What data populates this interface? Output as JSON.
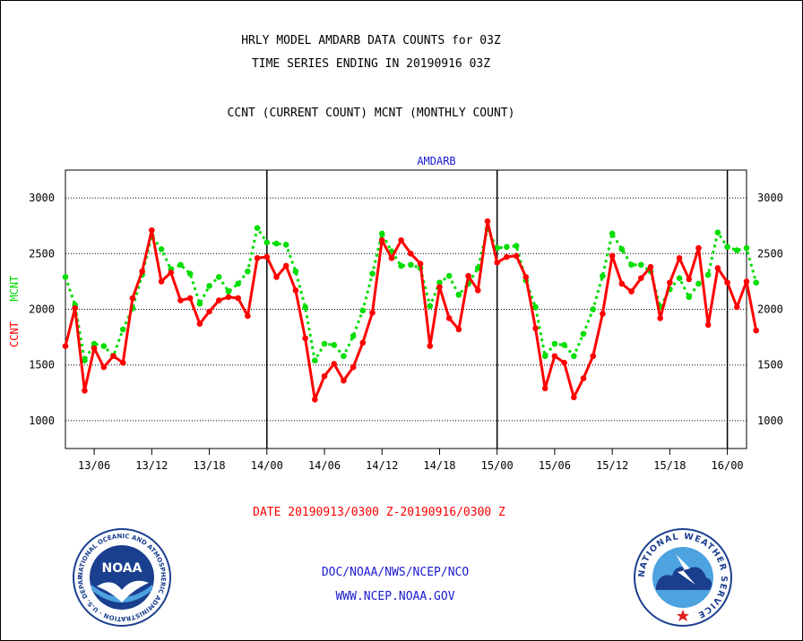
{
  "header": {
    "title_line1": "HRLY MODEL AMDARB DATA COUNTS for 03Z",
    "title_line2": "TIME SERIES ENDING IN 20190916 03Z",
    "subtitle": "CCNT (CURRENT COUNT) MCNT (MONTHLY COUNT)"
  },
  "footer": {
    "date_range": "DATE 20190913/0300 Z-20190916/0300 Z",
    "org_path": "DOC/NOAA/NWS/NCEP/NCO",
    "website": "WWW.NCEP.NOAA.GOV"
  },
  "logos": {
    "noaa_text": "NOAA",
    "noaa_ring_text": "NATIONAL OCEANIC AND ATMOSPHERIC ADMINISTRATION · U.S. DEPARTMENT OF COMMERCE",
    "nws_ring_text": "NATIONAL WEATHER SERVICE"
  },
  "colors": {
    "ccnt": "#ff0000",
    "mcnt": "#00dd00",
    "label_blue": "#1a1ad0"
  },
  "chart_data": {
    "type": "line",
    "title": "AMDARB",
    "ylabel_series": [
      "CCNT",
      "MCNT"
    ],
    "ylim": [
      750,
      3250
    ],
    "yticks": [
      1000,
      1500,
      2000,
      2500,
      3000
    ],
    "xlim": [
      3,
      74
    ],
    "xticks": [
      {
        "x": 6,
        "label": "13/06"
      },
      {
        "x": 12,
        "label": "13/12"
      },
      {
        "x": 18,
        "label": "13/18"
      },
      {
        "x": 24,
        "label": "14/00"
      },
      {
        "x": 30,
        "label": "14/06"
      },
      {
        "x": 36,
        "label": "14/12"
      },
      {
        "x": 42,
        "label": "14/18"
      },
      {
        "x": 48,
        "label": "15/00"
      },
      {
        "x": 54,
        "label": "15/06"
      },
      {
        "x": 60,
        "label": "15/12"
      },
      {
        "x": 66,
        "label": "15/18"
      },
      {
        "x": 72,
        "label": "16/00"
      }
    ],
    "day_boundaries": [
      24,
      48,
      72
    ],
    "grid": "dotted horizontal",
    "series": [
      {
        "name": "CCNT",
        "color": "#ff0000",
        "style": "solid",
        "x_start": 3,
        "values": [
          1670,
          2010,
          1270,
          1650,
          1480,
          1580,
          1520,
          2100,
          2340,
          2710,
          2250,
          2330,
          2080,
          2100,
          1870,
          1980,
          2080,
          2110,
          2100,
          1940,
          2460,
          2470,
          2290,
          2390,
          2170,
          1740,
          1190,
          1400,
          1510,
          1360,
          1480,
          1700,
          1970,
          2620,
          2460,
          2620,
          2500,
          2410,
          1670,
          2200,
          1920,
          1820,
          2300,
          2170,
          2790,
          2420,
          2470,
          2480,
          2290,
          1830,
          1290,
          1580,
          1520,
          1210,
          1380,
          1580,
          1960,
          2480,
          2230,
          2160,
          2280,
          2380,
          1920,
          2240,
          2460,
          2270,
          2550,
          1860,
          2370,
          2240,
          2020,
          2250,
          1810
        ]
      },
      {
        "name": "MCNT",
        "color": "#00dd00",
        "style": "dotted",
        "x_start": 3,
        "values": [
          2290,
          2040,
          1540,
          1690,
          1670,
          1580,
          1820,
          2010,
          2310,
          2660,
          2540,
          2360,
          2400,
          2320,
          2050,
          2210,
          2290,
          2160,
          2230,
          2340,
          2730,
          2600,
          2590,
          2580,
          2340,
          2020,
          1540,
          1690,
          1680,
          1580,
          1760,
          1990,
          2320,
          2680,
          2520,
          2390,
          2400,
          2370,
          2030,
          2240,
          2300,
          2130,
          2230,
          2370,
          2720,
          2550,
          2560,
          2570,
          2260,
          2020,
          1580,
          1690,
          1680,
          1580,
          1780,
          2000,
          2300,
          2680,
          2540,
          2400,
          2400,
          2340,
          2020,
          2180,
          2280,
          2110,
          2230,
          2310,
          2690,
          2560,
          2530,
          2550,
          2240
        ]
      }
    ]
  }
}
